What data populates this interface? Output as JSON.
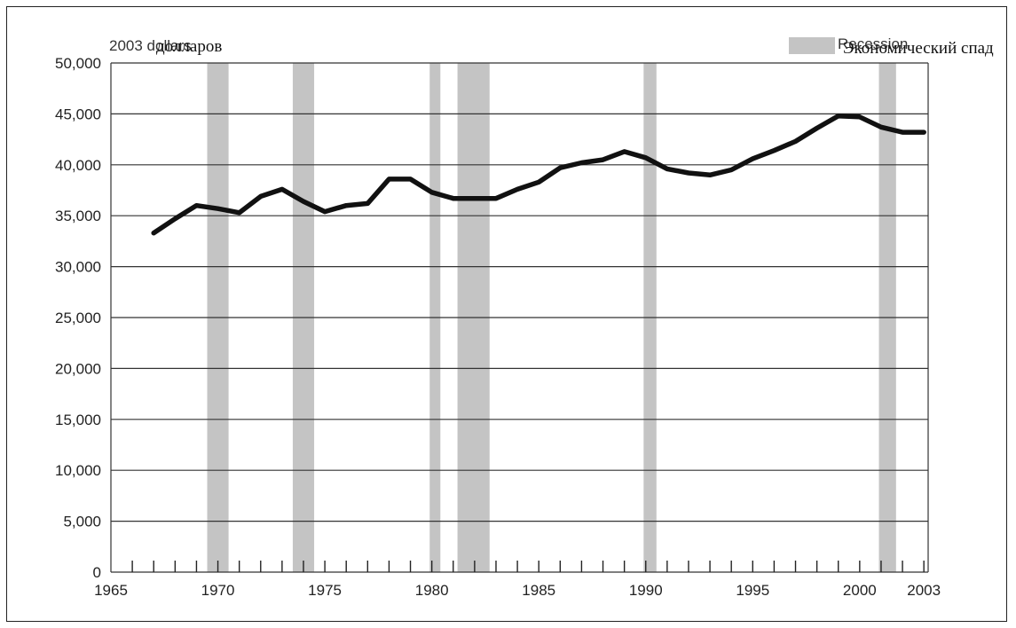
{
  "chart_data": {
    "type": "line",
    "title": "",
    "unit_label_original": "2003 dollars",
    "unit_label_translation": "долларов",
    "legend_original": "Recession",
    "legend_translation": "Экономический спад",
    "legend_placement": "top-right",
    "grid": "horizontal",
    "xlim": [
      1965,
      2003.2
    ],
    "ylim": [
      0,
      50000
    ],
    "x_ticks": [
      1965,
      1970,
      1975,
      1980,
      1985,
      1990,
      1995,
      2000,
      2003
    ],
    "x_tick_labels": [
      "1965",
      "1970",
      "1975",
      "1980",
      "1985",
      "1990",
      "1995",
      "2000",
      "2003"
    ],
    "y_ticks": [
      0,
      5000,
      10000,
      15000,
      20000,
      25000,
      30000,
      35000,
      40000,
      45000,
      50000
    ],
    "y_tick_labels": [
      "0",
      "5,000",
      "10,000",
      "15,000",
      "20,000",
      "25,000",
      "30,000",
      "35,000",
      "40,000",
      "45,000",
      "50,000"
    ],
    "recessions": [
      [
        1969.5,
        1970.5
      ],
      [
        1973.5,
        1974.5
      ],
      [
        1979.9,
        1980.4
      ],
      [
        1981.2,
        1982.7
      ],
      [
        1989.9,
        1990.5
      ],
      [
        2000.9,
        2001.7
      ]
    ],
    "series": [
      {
        "x": [
          1967,
          1968,
          1969,
          1970,
          1971,
          1972,
          1973,
          1974,
          1975,
          1976,
          1977,
          1978,
          1979,
          1980,
          1981,
          1982,
          1983,
          1984,
          1985,
          1986,
          1987,
          1988,
          1989,
          1990,
          1991,
          1992,
          1993,
          1994,
          1995,
          1996,
          1997,
          1998,
          1999,
          2000,
          2001,
          2002,
          2003
        ],
        "y": [
          33300,
          34700,
          36000,
          35700,
          35300,
          36900,
          37600,
          36400,
          35400,
          36000,
          36200,
          38600,
          38600,
          37300,
          36700,
          36700,
          36700,
          37600,
          38300,
          39700,
          40200,
          40500,
          41300,
          40700,
          39600,
          39200,
          39000,
          39500,
          40600,
          41400,
          42300,
          43600,
          44800,
          44700,
          43700,
          43200,
          43200
        ]
      }
    ],
    "colors": {
      "line": "#111111",
      "recession": "#c4c4c4",
      "grid": "#333333"
    }
  }
}
